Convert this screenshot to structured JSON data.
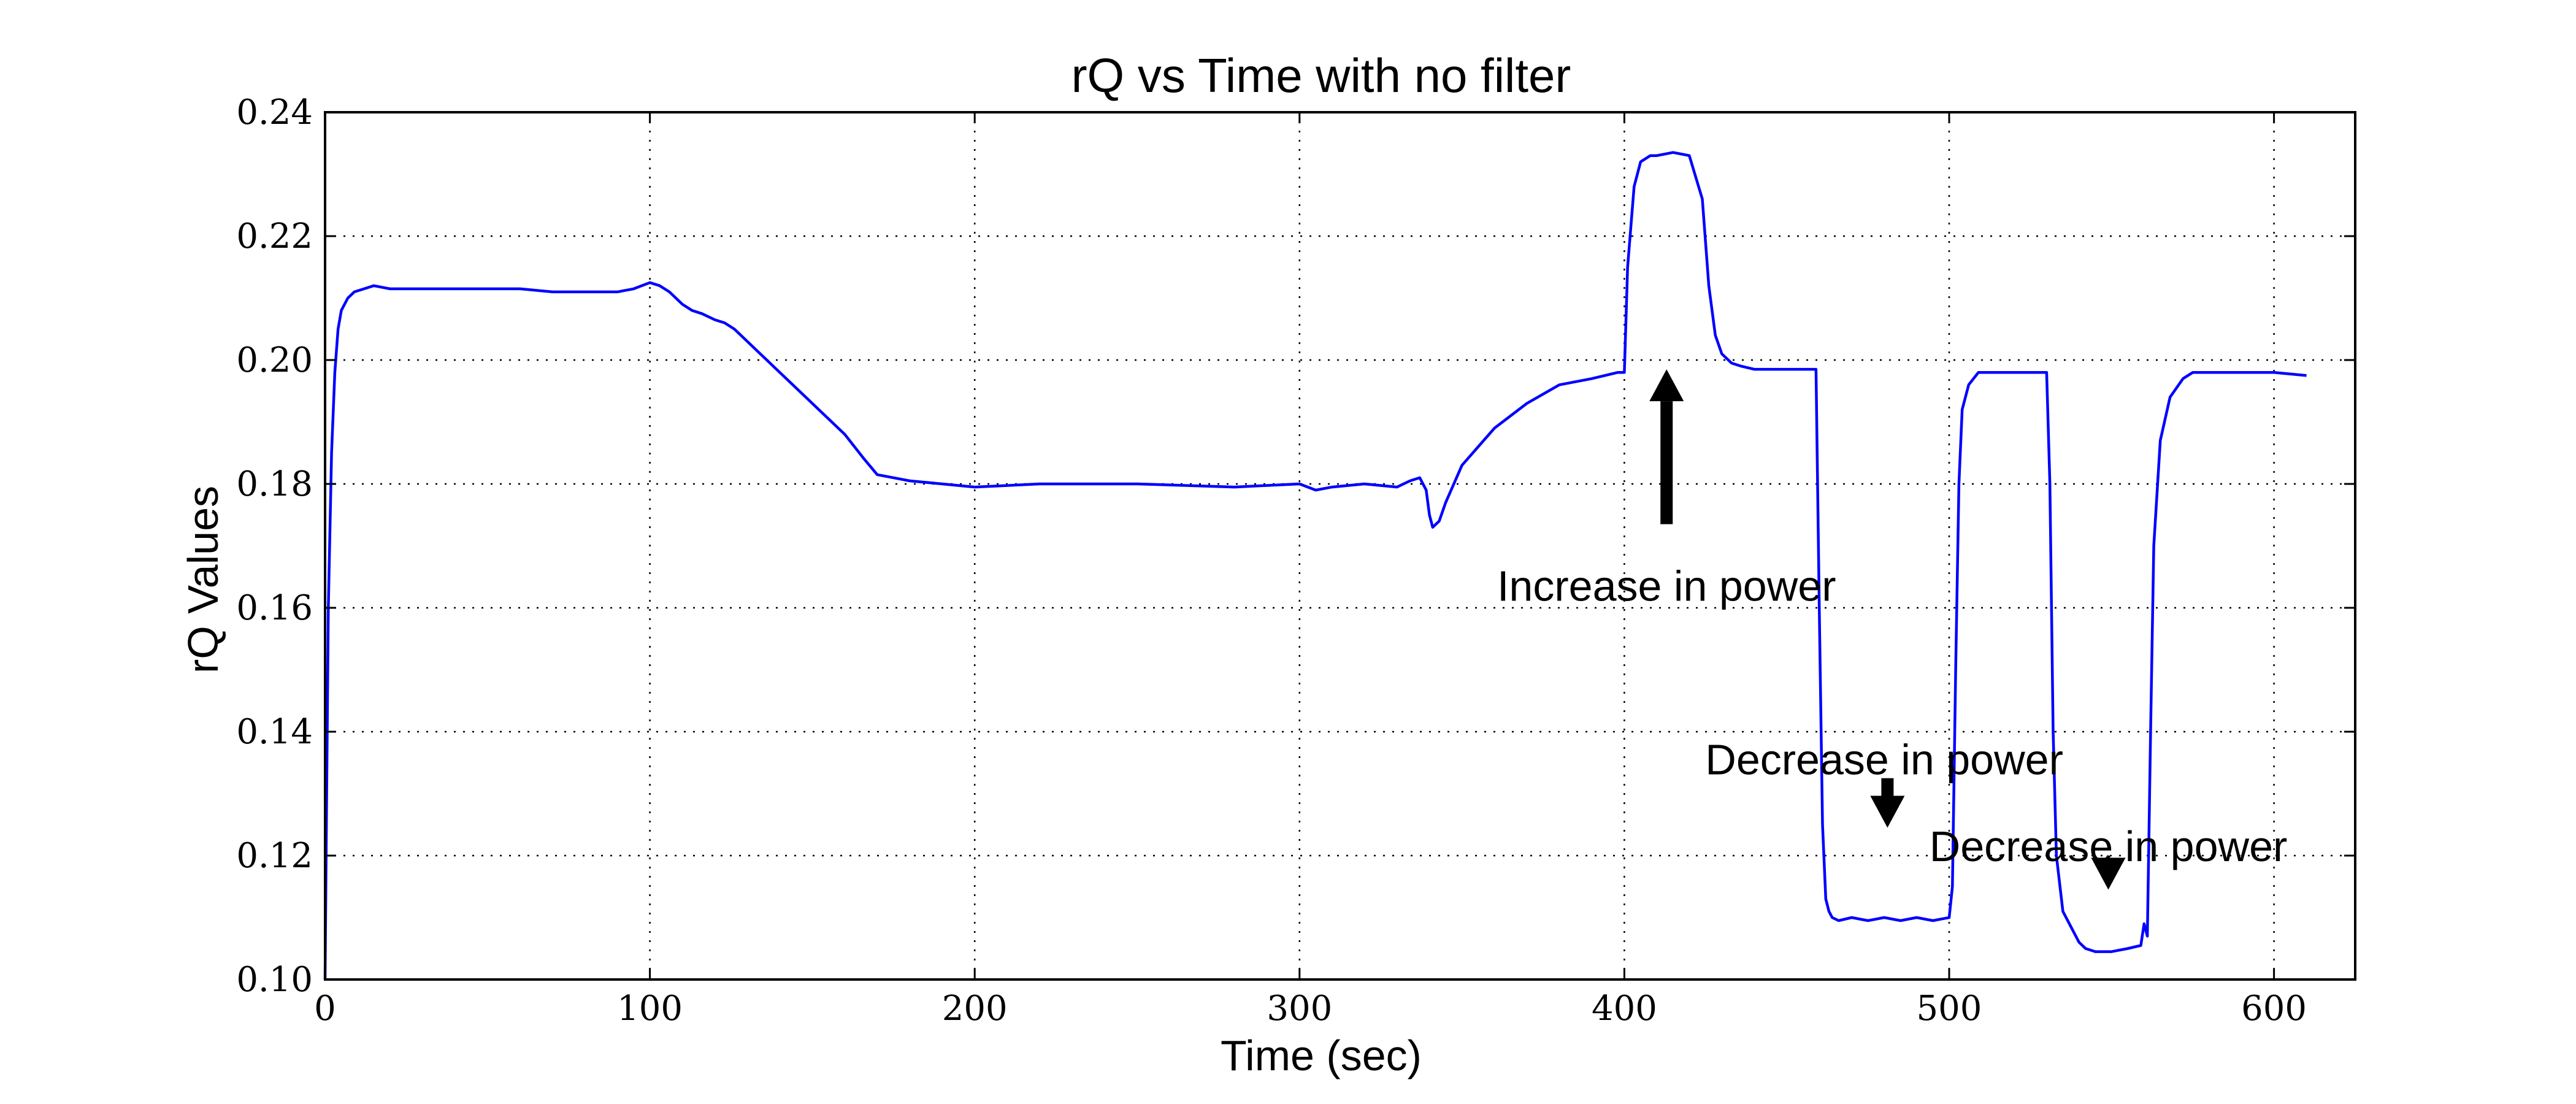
{
  "chart_data": {
    "type": "line",
    "title": "rQ vs Time with no filter",
    "xlabel": "Time (sec)",
    "ylabel": "rQ Values",
    "xlim": [
      0,
      625
    ],
    "ylim": [
      0.1,
      0.24
    ],
    "x_ticks": [
      0,
      100,
      200,
      300,
      400,
      500,
      600
    ],
    "x_tick_labels": [
      "0",
      "100",
      "200",
      "300",
      "400",
      "500",
      "600"
    ],
    "y_ticks": [
      0.1,
      0.12,
      0.14,
      0.16,
      0.18,
      0.2,
      0.22,
      0.24
    ],
    "y_tick_labels": [
      "0.10",
      "0.12",
      "0.14",
      "0.16",
      "0.18",
      "0.20",
      "0.22",
      "0.24"
    ],
    "grid": true,
    "line_color": "#0000ff",
    "series": [
      {
        "x": [
          0,
          0.5,
          1,
          2,
          3,
          4,
          5,
          7,
          9,
          12,
          15,
          20,
          30,
          40,
          50,
          60,
          70,
          80,
          90,
          95,
          100,
          103,
          106,
          110,
          113,
          116,
          120,
          123,
          126,
          130,
          140,
          150,
          160,
          163,
          166,
          170,
          175,
          180,
          190,
          200,
          220,
          250,
          280,
          300,
          305,
          310,
          320,
          330,
          334,
          337,
          339,
          340,
          341,
          343,
          345,
          350,
          360,
          370,
          380,
          390,
          398,
          400,
          401,
          403,
          405,
          408,
          410,
          415,
          420,
          424,
          426,
          428,
          430,
          433,
          436,
          440,
          450,
          459,
          460,
          461,
          462,
          463,
          464,
          466,
          470,
          475,
          480,
          485,
          490,
          495,
          500,
          501,
          502,
          503,
          504,
          506,
          509,
          512,
          516,
          520,
          525,
          530,
          531,
          532,
          533,
          535,
          538,
          540,
          542,
          545,
          550,
          555,
          559,
          560,
          561,
          562,
          563,
          565,
          568,
          572,
          575,
          580,
          590,
          600,
          610
        ],
        "y": [
          0.1,
          0.13,
          0.16,
          0.185,
          0.198,
          0.205,
          0.208,
          0.21,
          0.211,
          0.2115,
          0.212,
          0.2115,
          0.2115,
          0.2115,
          0.2115,
          0.2115,
          0.211,
          0.211,
          0.211,
          0.2115,
          0.2125,
          0.212,
          0.211,
          0.209,
          0.208,
          0.2075,
          0.2065,
          0.206,
          0.205,
          0.203,
          0.198,
          0.193,
          0.188,
          0.186,
          0.184,
          0.1815,
          0.181,
          0.1805,
          0.18,
          0.1795,
          0.18,
          0.18,
          0.1795,
          0.18,
          0.179,
          0.1795,
          0.18,
          0.1795,
          0.1805,
          0.181,
          0.179,
          0.175,
          0.173,
          0.174,
          0.177,
          0.183,
          0.189,
          0.193,
          0.196,
          0.197,
          0.198,
          0.198,
          0.215,
          0.228,
          0.232,
          0.233,
          0.233,
          0.2335,
          0.233,
          0.226,
          0.212,
          0.204,
          0.201,
          0.1995,
          0.199,
          0.1985,
          0.1985,
          0.1985,
          0.16,
          0.125,
          0.113,
          0.111,
          0.11,
          0.1095,
          0.11,
          0.1095,
          0.11,
          0.1095,
          0.11,
          0.1095,
          0.11,
          0.115,
          0.15,
          0.18,
          0.192,
          0.196,
          0.198,
          0.198,
          0.198,
          0.198,
          0.198,
          0.198,
          0.18,
          0.14,
          0.12,
          0.111,
          0.108,
          0.106,
          0.105,
          0.1045,
          0.1045,
          0.105,
          0.1055,
          0.109,
          0.107,
          0.14,
          0.17,
          0.187,
          0.194,
          0.197,
          0.198,
          0.198,
          0.198,
          0.198,
          0.1975
        ]
      }
    ],
    "annotations": [
      {
        "text": "Increase in power",
        "text_x": 413,
        "text_y": 0.1635,
        "arrow_from": [
          413,
          0.1735
        ],
        "arrow_to": [
          413,
          0.1985
        ],
        "direction": "up"
      },
      {
        "text": "Decrease in power",
        "text_x": 480,
        "text_y": 0.1355,
        "arrow_from": [
          481,
          0.1325
        ],
        "arrow_to": [
          481,
          0.1245
        ],
        "direction": "down"
      },
      {
        "text": "Decrease in power",
        "text_x": 549,
        "text_y": 0.1215,
        "arrow_from": [
          549,
          0.1185
        ],
        "arrow_to": [
          549,
          0.1145
        ],
        "direction": "down"
      }
    ]
  }
}
